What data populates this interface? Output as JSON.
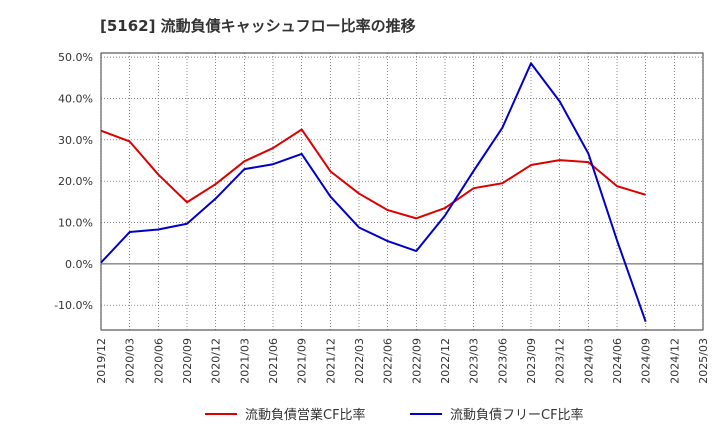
{
  "chart_data": {
    "type": "line",
    "title": "[5162]  流動負債キャッシュフロー比率の推移",
    "x": [
      "2019/12",
      "2020/03",
      "2020/06",
      "2020/09",
      "2020/12",
      "2021/03",
      "2021/06",
      "2021/09",
      "2021/12",
      "2022/03",
      "2022/06",
      "2022/09",
      "2022/12",
      "2023/03",
      "2023/06",
      "2023/09",
      "2023/12",
      "2024/03",
      "2024/06",
      "2024/09",
      "2024/12",
      "2025/03"
    ],
    "y_ticks": [
      "50.0%",
      "40.0%",
      "30.0%",
      "20.0%",
      "10.0%",
      "0.0%",
      "-10.0%"
    ],
    "ylim": [
      -16,
      51
    ],
    "grid": true,
    "legend_position": "bottom",
    "series": [
      {
        "name": "流動負債営業CF比率",
        "color": "#dd0000",
        "values": [
          32.2,
          29.6,
          21.6,
          14.9,
          19.3,
          24.8,
          28.0,
          32.5,
          22.4,
          17.0,
          13.0,
          11.0,
          13.5,
          18.3,
          19.5,
          23.9,
          25.1,
          24.6,
          18.8,
          16.7,
          null,
          null
        ]
      },
      {
        "name": "流動負債フリーCF比率",
        "color": "#0000cc",
        "values": [
          0.3,
          7.7,
          8.3,
          9.7,
          15.8,
          22.9,
          24.1,
          26.6,
          16.3,
          8.8,
          5.5,
          3.1,
          11.7,
          22.5,
          32.9,
          48.5,
          39.3,
          26.7,
          5.7,
          -14.0,
          null,
          null
        ]
      }
    ]
  }
}
